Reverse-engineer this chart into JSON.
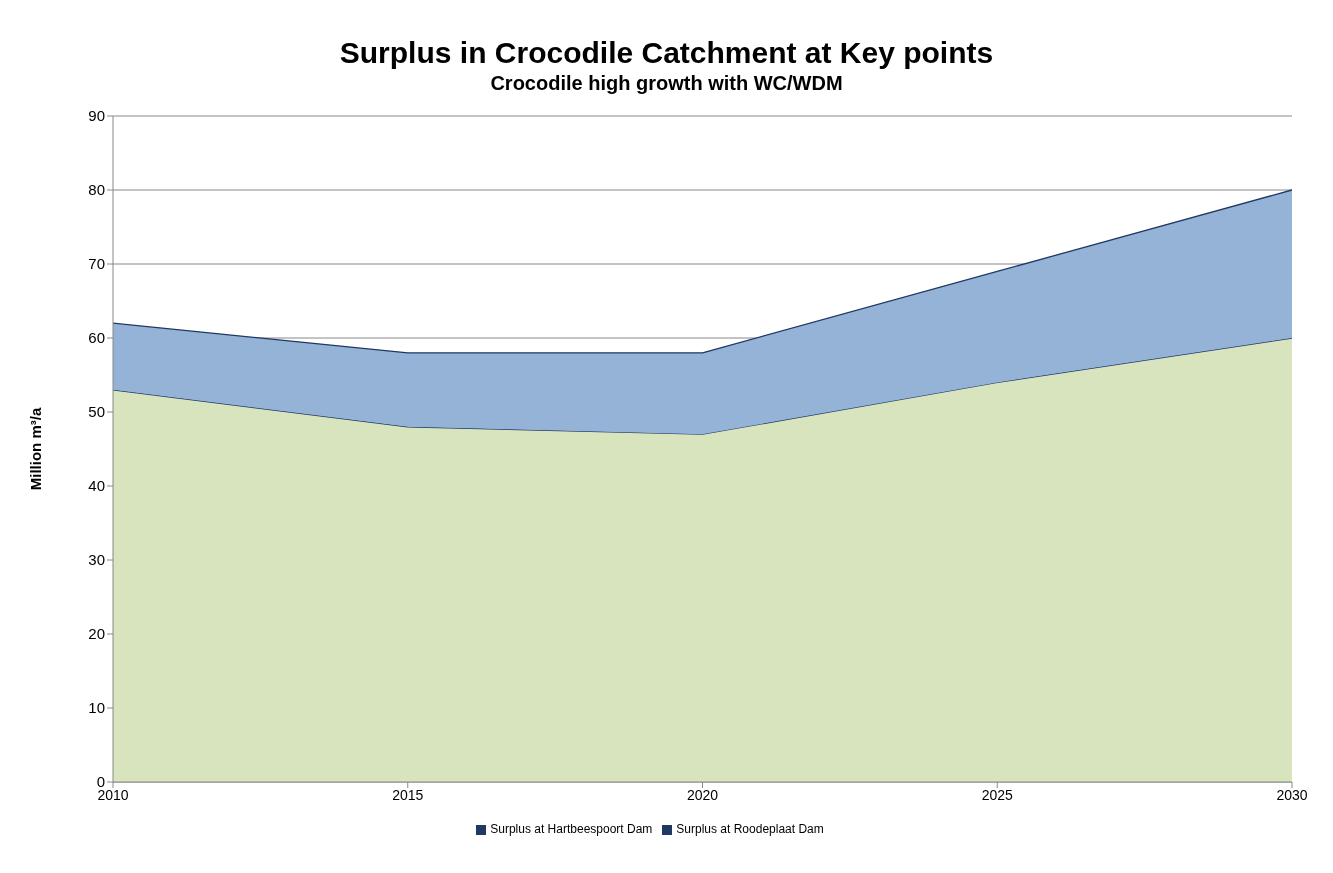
{
  "chart_data": {
    "type": "area",
    "title": "Surplus in Crocodile Catchment at Key points",
    "subtitle": "Crocodile high growth with WC/WDM",
    "ylabel": "Million m³/a",
    "categories": [
      "2010",
      "2015",
      "2020",
      "2025",
      "2030"
    ],
    "stacked": true,
    "series": [
      {
        "name": "Surplus at Hartbeespoort Dam",
        "color": "#d7e4bd",
        "values": [
          53,
          48,
          47,
          54,
          60
        ]
      },
      {
        "name": "Surplus at Roodeplaat Dam",
        "color": "#95b3d7",
        "values": [
          9,
          10,
          11,
          15,
          20
        ]
      }
    ],
    "ylim": [
      0,
      90
    ],
    "yticks": [
      0,
      10,
      20,
      30,
      40,
      50,
      60,
      70,
      80,
      90
    ],
    "grid": "y",
    "legend": "bottom"
  }
}
